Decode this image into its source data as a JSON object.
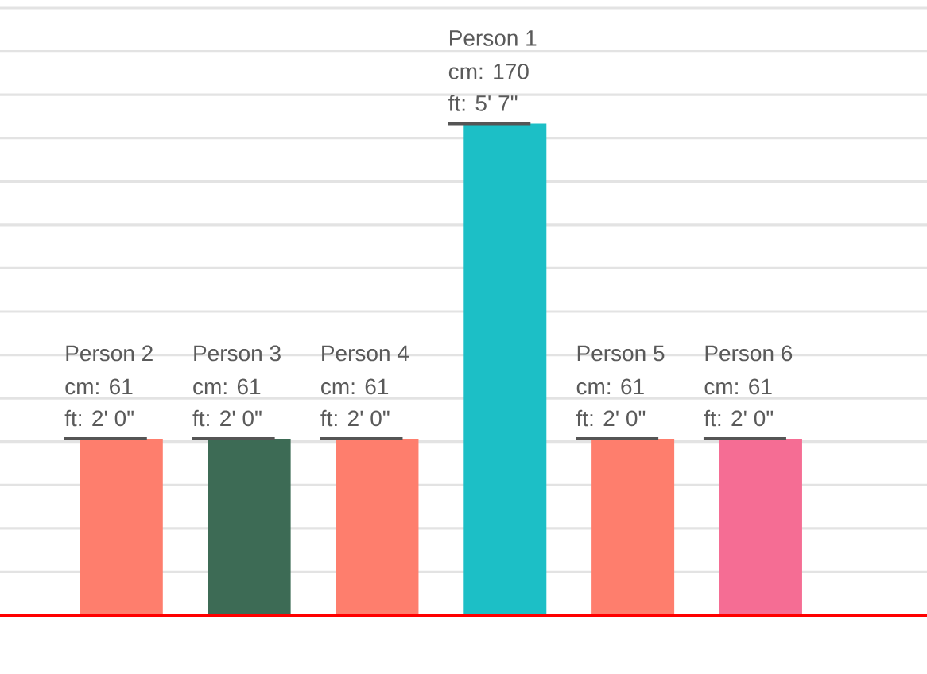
{
  "chart_data": {
    "type": "bar",
    "categories": [
      "Person 2",
      "Person 3",
      "Person 4",
      "Person 1",
      "Person 5",
      "Person 6"
    ],
    "values": [
      61,
      61,
      61,
      170,
      61,
      61
    ],
    "colors": [
      "#fe7e6d",
      "#3d6b55",
      "#fe7e6d",
      "#1cbfc6",
      "#fe7e6d",
      "#f56d94"
    ],
    "value_labels": [
      "cm: 61",
      "cm: 61",
      "cm: 61",
      "cm: 170",
      "cm: 61",
      "cm: 61"
    ],
    "annotations": [
      {
        "text": "ft: 2' 0\"",
        "x": "Person 2",
        "y": 61
      },
      {
        "text": "ft: 2' 0\"",
        "x": "Person 3",
        "y": 61
      },
      {
        "text": "ft: 2' 0\"",
        "x": "Person 4",
        "y": 61
      },
      {
        "text": "ft: 5' 7\"",
        "x": "Person 1",
        "y": 170
      },
      {
        "text": "ft: 2' 0\"",
        "x": "Person 5",
        "y": 61
      },
      {
        "text": "ft: 2' 0\"",
        "x": "Person 6",
        "y": 61
      }
    ],
    "ylim": [
      0,
      210
    ],
    "yticks": [
      {
        "value": 15,
        "label": null
      },
      {
        "value": 30,
        "label": null
      },
      {
        "value": 45,
        "label": null
      },
      {
        "value": 60,
        "label": null
      },
      {
        "value": 75,
        "label": null
      },
      {
        "value": 90,
        "label": null
      },
      {
        "value": 105,
        "label": null
      },
      {
        "value": 120,
        "label": null
      },
      {
        "value": 135,
        "label": null
      },
      {
        "value": 150,
        "label": null
      },
      {
        "value": 165,
        "label": null
      },
      {
        "value": 180,
        "label": null
      },
      {
        "value": 195,
        "label": null
      },
      {
        "value": 210,
        "label": null
      }
    ],
    "grid": "y",
    "tick_labels": "x",
    "ref_lines": [
      {
        "axis": "y",
        "value": 0,
        "color": "#ff0000"
      }
    ]
  }
}
